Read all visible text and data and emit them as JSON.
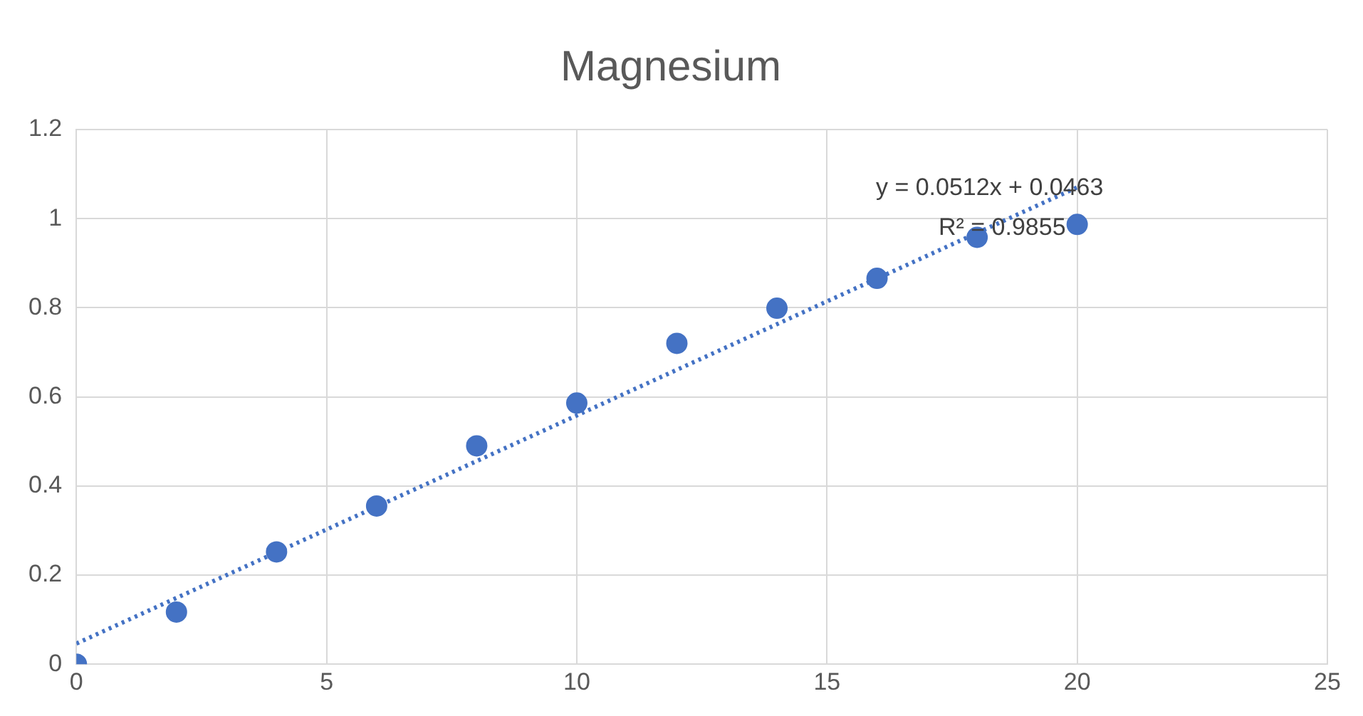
{
  "chart_data": {
    "type": "scatter",
    "title": "Magnesium",
    "x": [
      0,
      2,
      4,
      6,
      8,
      10,
      12,
      14,
      16,
      18,
      20
    ],
    "series": [
      {
        "color": "#4472c4",
        "marker": "circle",
        "values": [
          0,
          0.117,
          0.252,
          0.355,
          0.49,
          0.586,
          0.72,
          0.799,
          0.866,
          0.958,
          0.987
        ]
      },
      {
        "type": "line",
        "color": "#4472c4",
        "marker": "none",
        "line_style": "dotted",
        "x": [
          0,
          20
        ],
        "values": [
          0.0463,
          1.0703
        ]
      }
    ],
    "xlim": [
      0,
      25
    ],
    "xticks": [
      0,
      5,
      10,
      15,
      20,
      25
    ],
    "ylim": [
      0,
      1.2
    ],
    "yticks": [
      0,
      0.2,
      0.4,
      0.6,
      0.8,
      1,
      1.2
    ],
    "grid": true,
    "legend": false,
    "annotations": [
      "y = 0.0512x + 0.0463",
      "R² = 0.9855"
    ]
  }
}
